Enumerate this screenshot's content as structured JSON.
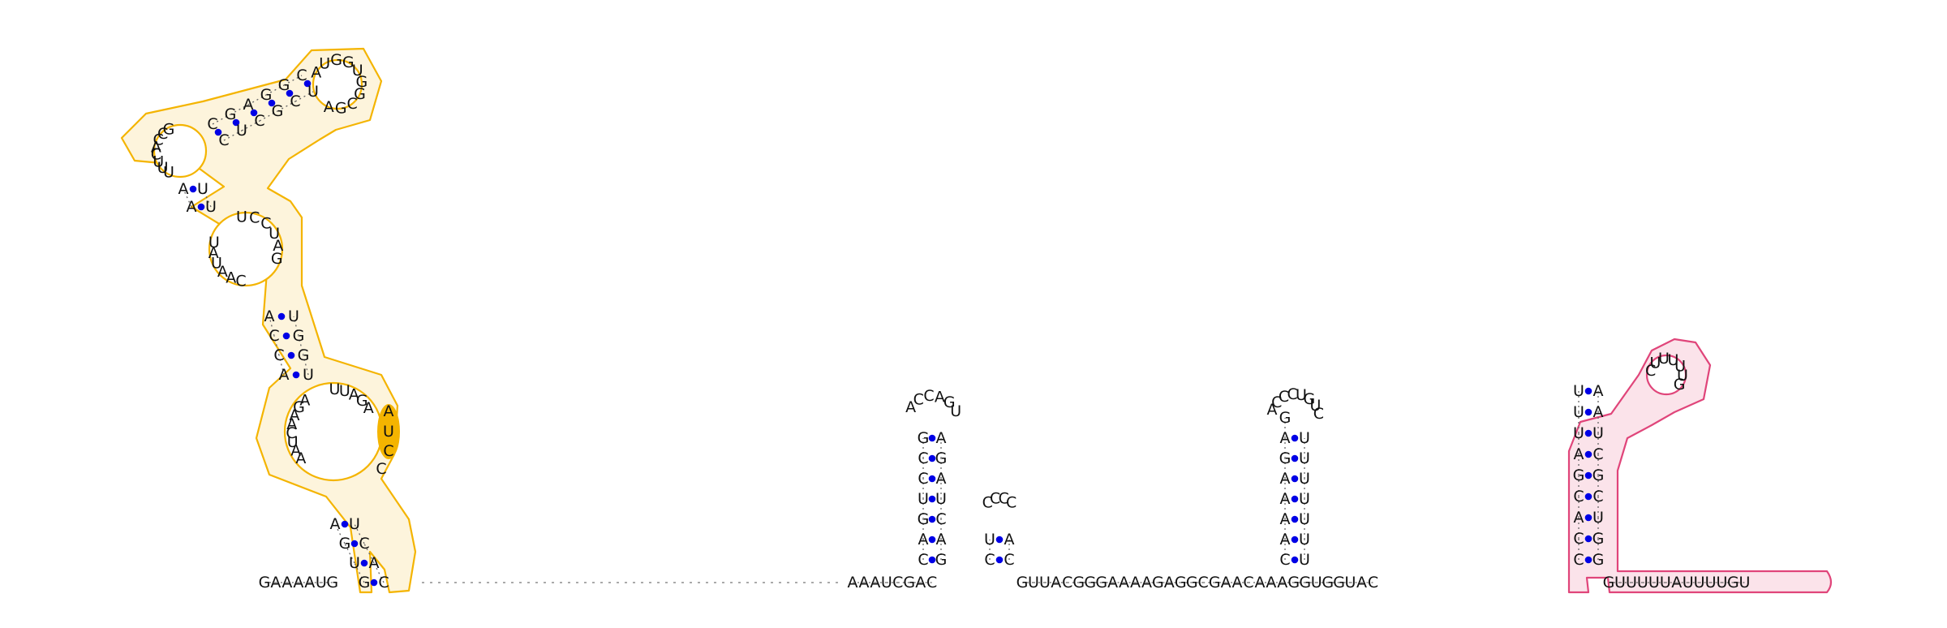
{
  "diagram": {
    "type": "rna-secondary-structure",
    "colors": {
      "base_pair": "#0000e6",
      "highlight_1": "#f4b400",
      "highlight_2": "#e0457a",
      "text": "#111111"
    },
    "domains": [
      {
        "id": "d1",
        "sequence": "GAAAAUG"
      },
      {
        "id": "d2",
        "sequence": "AAAUCGAC"
      },
      {
        "id": "d3",
        "sequence": "GUUACGGGAAAAGAGGCGAACAAAGGUGGUAC"
      },
      {
        "id": "d4",
        "sequence": "GUUUUUAUUUUGU"
      }
    ]
  }
}
